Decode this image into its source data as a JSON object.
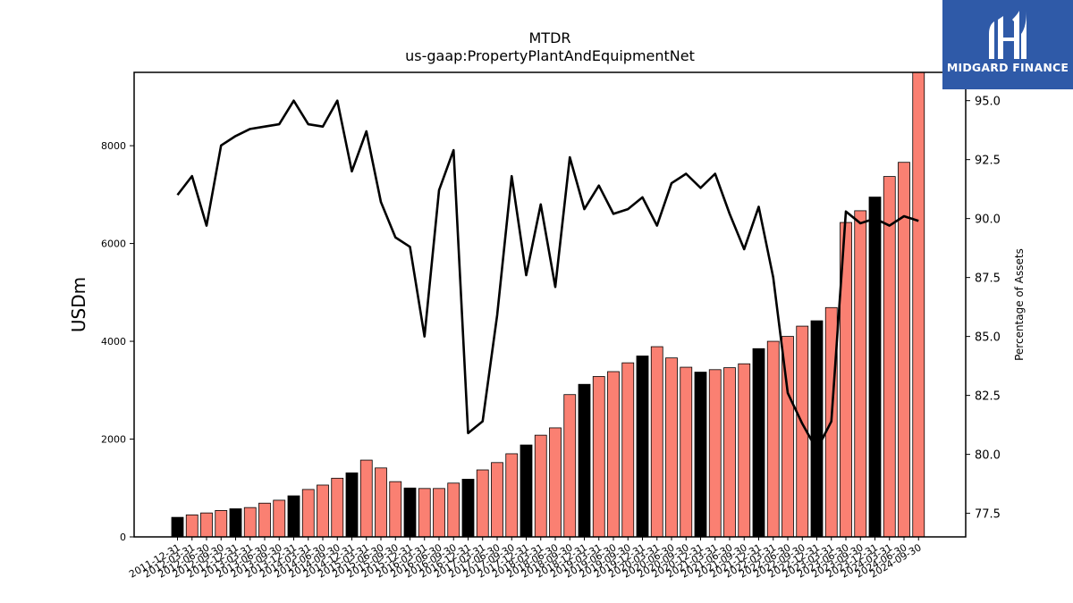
{
  "brand": {
    "name": "MIDGARD FINANCE"
  },
  "chart_data": {
    "type": "bar",
    "title": "MTDR",
    "subtitle": "us-gaap:PropertyPlantAndEquipmentNet",
    "ylabel": "USDm",
    "y2label": "Percentage of Assets",
    "ylim": [
      0,
      9500
    ],
    "y2lim": [
      76.5,
      96.2
    ],
    "yticks": [
      "0",
      "2000",
      "4000",
      "6000",
      "8000"
    ],
    "y2ticks": [
      "77.5",
      "80.0",
      "82.5",
      "85.0",
      "87.5",
      "90.0",
      "92.5",
      "95.0"
    ],
    "grid": false,
    "categories": [
      "2011-12-31",
      "2012-03-31",
      "2012-06-30",
      "2012-09-30",
      "2012-12-31",
      "2013-03-31",
      "2013-06-30",
      "2013-09-30",
      "2013-12-31",
      "2014-03-31",
      "2014-06-30",
      "2014-09-30",
      "2014-12-31",
      "2015-03-31",
      "2015-06-30",
      "2015-09-30",
      "2015-12-31",
      "2016-03-31",
      "2016-06-30",
      "2016-09-30",
      "2016-12-31",
      "2017-03-31",
      "2017-06-30",
      "2017-09-30",
      "2017-12-31",
      "2018-03-31",
      "2018-06-30",
      "2018-09-30",
      "2018-12-31",
      "2019-03-31",
      "2019-06-30",
      "2019-09-30",
      "2019-12-31",
      "2020-03-31",
      "2020-06-30",
      "2020-09-30",
      "2020-12-31",
      "2021-03-31",
      "2021-06-30",
      "2021-09-30",
      "2021-12-31",
      "2022-03-31",
      "2022-06-30",
      "2022-09-30",
      "2022-12-31",
      "2023-03-31",
      "2023-06-30",
      "2023-09-30",
      "2023-12-31",
      "2024-03-31",
      "2024-06-30",
      "2024-09-30"
    ],
    "series": [
      {
        "type": "bar",
        "values": [
          400,
          450,
          490,
          540,
          575,
          600,
          690,
          750,
          840,
          970,
          1060,
          1200,
          1310,
          1570,
          1410,
          1130,
          1000,
          990,
          990,
          1100,
          1180,
          1370,
          1520,
          1700,
          1880,
          2080,
          2230,
          2910,
          3120,
          3280,
          3380,
          3560,
          3700,
          3890,
          3660,
          3470,
          3370,
          3420,
          3460,
          3540,
          3850,
          4000,
          4100,
          4310,
          4420,
          4690,
          6430,
          6670,
          6950,
          7370,
          7660,
          9560
        ],
        "colors": [
          "#000000",
          "#fa8072",
          "#fa8072",
          "#fa8072",
          "#000000",
          "#fa8072",
          "#fa8072",
          "#fa8072",
          "#000000",
          "#fa8072",
          "#fa8072",
          "#fa8072",
          "#000000",
          "#fa8072",
          "#fa8072",
          "#fa8072",
          "#000000",
          "#fa8072",
          "#fa8072",
          "#fa8072",
          "#000000",
          "#fa8072",
          "#fa8072",
          "#fa8072",
          "#000000",
          "#fa8072",
          "#fa8072",
          "#fa8072",
          "#000000",
          "#fa8072",
          "#fa8072",
          "#fa8072",
          "#000000",
          "#fa8072",
          "#fa8072",
          "#fa8072",
          "#000000",
          "#fa8072",
          "#fa8072",
          "#fa8072",
          "#000000",
          "#fa8072",
          "#fa8072",
          "#fa8072",
          "#000000",
          "#fa8072",
          "#fa8072",
          "#fa8072",
          "#000000",
          "#fa8072",
          "#fa8072",
          "#fa8072"
        ]
      },
      {
        "type": "line",
        "axis": "right",
        "color": "#000000",
        "values": [
          91.0,
          91.8,
          89.7,
          93.1,
          93.5,
          93.8,
          93.9,
          94.0,
          95.0,
          94.0,
          93.9,
          95.0,
          92.0,
          93.7,
          90.7,
          89.2,
          88.8,
          85.0,
          91.2,
          92.9,
          80.9,
          81.4,
          85.9,
          91.8,
          87.6,
          90.6,
          87.1,
          92.6,
          90.4,
          91.4,
          90.2,
          90.4,
          90.9,
          89.7,
          91.5,
          91.9,
          91.3,
          91.9,
          90.2,
          88.7,
          90.5,
          87.5,
          82.6,
          81.3,
          80.2,
          81.4,
          90.3,
          89.8,
          90.0,
          89.7,
          90.1,
          89.9
        ]
      }
    ]
  }
}
